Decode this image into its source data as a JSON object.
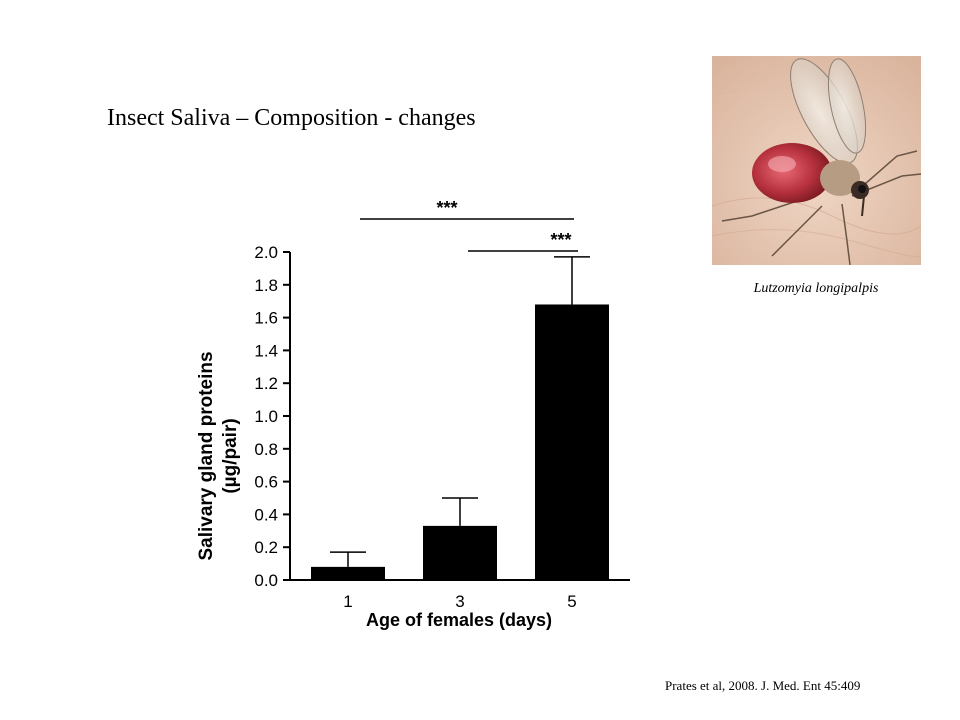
{
  "slide": {
    "title": "Insect Saliva – Composition - changes",
    "photo_caption": "Lutzomyia longipalpis",
    "citation": "Prates et al, 2008. J. Med. Ent 45:409"
  },
  "chart_data": {
    "type": "bar",
    "categories": [
      "1",
      "3",
      "5"
    ],
    "values": [
      0.08,
      0.33,
      1.68
    ],
    "errors": [
      0.09,
      0.17,
      0.29
    ],
    "xlabel": "Age of females (days)",
    "ylabel_line1": "Salivary gland proteins",
    "ylabel_line2": "(µg/pair)",
    "ylim": [
      0,
      2.0
    ],
    "yticks": [
      "0.0",
      "0.2",
      "0.4",
      "0.6",
      "0.8",
      "1.0",
      "1.2",
      "1.4",
      "1.6",
      "1.8",
      "2.0"
    ],
    "bar_color": "#000000",
    "significance": [
      {
        "from": "1",
        "to": "5",
        "label": "***"
      },
      {
        "from": "3",
        "to": "5",
        "label": "***"
      }
    ]
  }
}
